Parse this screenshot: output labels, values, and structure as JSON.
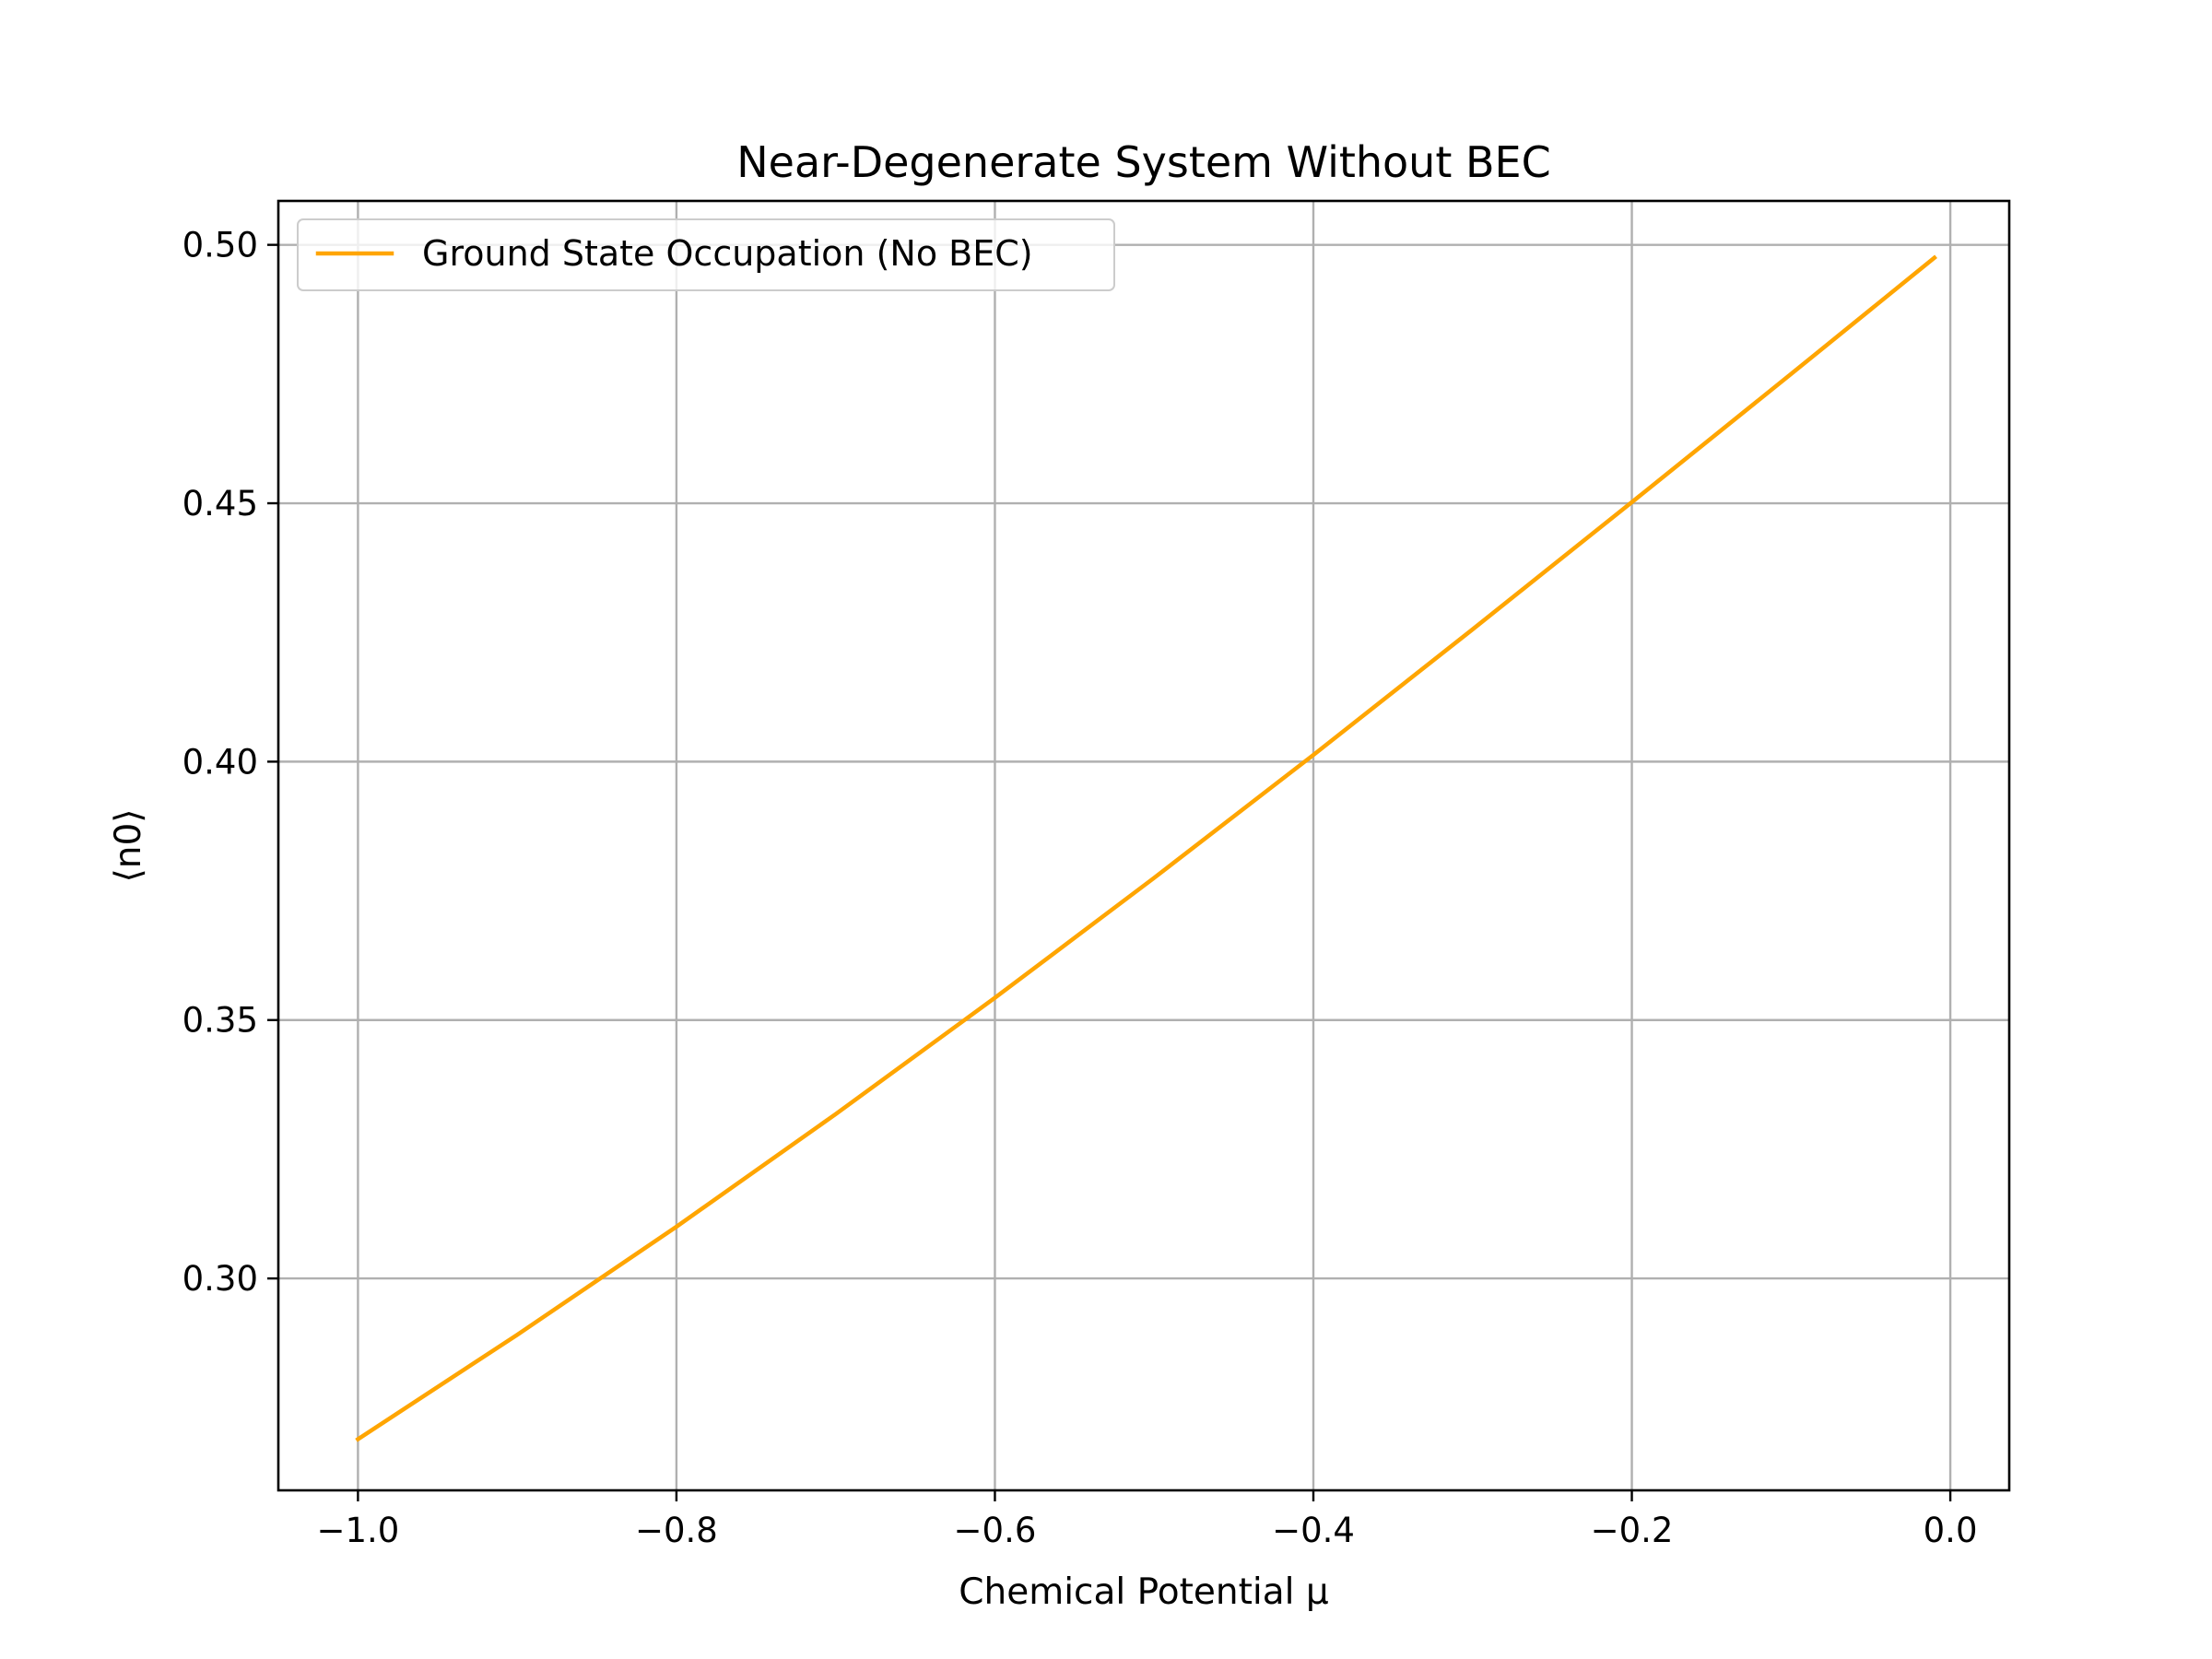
{
  "chart_data": {
    "type": "line",
    "title": "Near-Degenerate System Without BEC",
    "xlabel": "Chemical Potential μ",
    "ylabel": "⟨n0⟩",
    "xlim": [
      -1.05,
      0.037
    ],
    "ylim": [
      0.259,
      0.5085
    ],
    "xticks": [
      -1.0,
      -0.8,
      -0.6,
      -0.4,
      -0.2,
      0.0
    ],
    "xtick_labels": [
      "−1.0",
      "−0.8",
      "−0.6",
      "−0.4",
      "−0.2",
      "0.0"
    ],
    "yticks": [
      0.3,
      0.35,
      0.4,
      0.45,
      0.5
    ],
    "ytick_labels": [
      "0.30",
      "0.35",
      "0.40",
      "0.45",
      "0.50"
    ],
    "grid": true,
    "legend_position": "upper-left",
    "series": [
      {
        "name": "Ground State Occupation (No BEC)",
        "color": "#FFA500",
        "x": [
          -1.0,
          -0.9,
          -0.8,
          -0.7,
          -0.6,
          -0.5,
          -0.4,
          -0.3,
          -0.2,
          -0.1,
          -0.01
        ],
        "y": [
          0.2689,
          0.2891,
          0.31,
          0.3318,
          0.3543,
          0.3775,
          0.4013,
          0.4256,
          0.4502,
          0.475,
          0.4975
        ]
      }
    ]
  }
}
